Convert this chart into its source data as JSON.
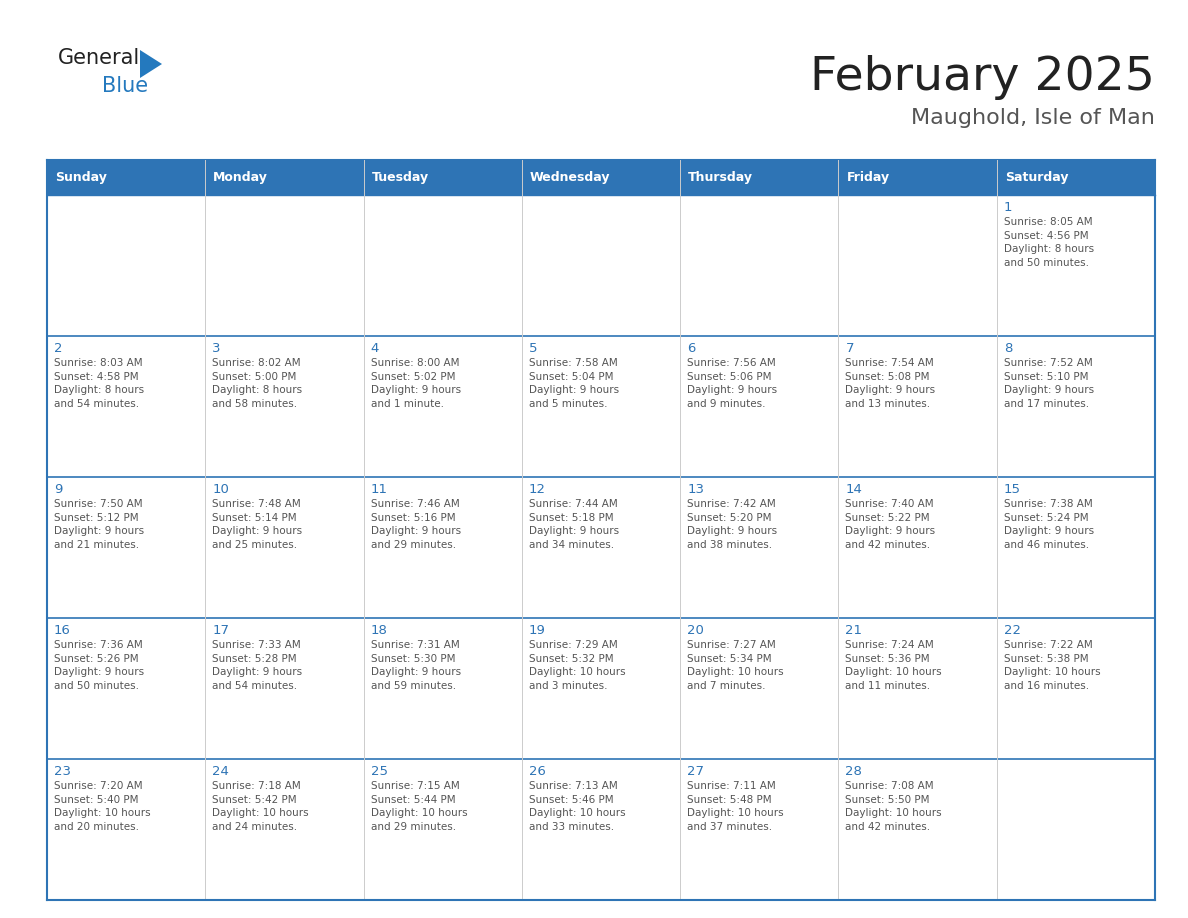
{
  "title": "February 2025",
  "subtitle": "Maughold, Isle of Man",
  "header_bg": "#2E74B5",
  "header_text_color": "#FFFFFF",
  "cell_bg": "#FFFFFF",
  "cell_alt_bg": "#F2F2F2",
  "row_border_color": "#2E74B5",
  "col_border_color": "#CCCCCC",
  "outer_border_color": "#2E74B5",
  "title_color": "#222222",
  "subtitle_color": "#555555",
  "day_number_color": "#2E74B5",
  "cell_text_color": "#555555",
  "days_of_week": [
    "Sunday",
    "Monday",
    "Tuesday",
    "Wednesday",
    "Thursday",
    "Friday",
    "Saturday"
  ],
  "weeks": [
    [
      {
        "day": null,
        "info": null
      },
      {
        "day": null,
        "info": null
      },
      {
        "day": null,
        "info": null
      },
      {
        "day": null,
        "info": null
      },
      {
        "day": null,
        "info": null
      },
      {
        "day": null,
        "info": null
      },
      {
        "day": 1,
        "info": "Sunrise: 8:05 AM\nSunset: 4:56 PM\nDaylight: 8 hours\nand 50 minutes."
      }
    ],
    [
      {
        "day": 2,
        "info": "Sunrise: 8:03 AM\nSunset: 4:58 PM\nDaylight: 8 hours\nand 54 minutes."
      },
      {
        "day": 3,
        "info": "Sunrise: 8:02 AM\nSunset: 5:00 PM\nDaylight: 8 hours\nand 58 minutes."
      },
      {
        "day": 4,
        "info": "Sunrise: 8:00 AM\nSunset: 5:02 PM\nDaylight: 9 hours\nand 1 minute."
      },
      {
        "day": 5,
        "info": "Sunrise: 7:58 AM\nSunset: 5:04 PM\nDaylight: 9 hours\nand 5 minutes."
      },
      {
        "day": 6,
        "info": "Sunrise: 7:56 AM\nSunset: 5:06 PM\nDaylight: 9 hours\nand 9 minutes."
      },
      {
        "day": 7,
        "info": "Sunrise: 7:54 AM\nSunset: 5:08 PM\nDaylight: 9 hours\nand 13 minutes."
      },
      {
        "day": 8,
        "info": "Sunrise: 7:52 AM\nSunset: 5:10 PM\nDaylight: 9 hours\nand 17 minutes."
      }
    ],
    [
      {
        "day": 9,
        "info": "Sunrise: 7:50 AM\nSunset: 5:12 PM\nDaylight: 9 hours\nand 21 minutes."
      },
      {
        "day": 10,
        "info": "Sunrise: 7:48 AM\nSunset: 5:14 PM\nDaylight: 9 hours\nand 25 minutes."
      },
      {
        "day": 11,
        "info": "Sunrise: 7:46 AM\nSunset: 5:16 PM\nDaylight: 9 hours\nand 29 minutes."
      },
      {
        "day": 12,
        "info": "Sunrise: 7:44 AM\nSunset: 5:18 PM\nDaylight: 9 hours\nand 34 minutes."
      },
      {
        "day": 13,
        "info": "Sunrise: 7:42 AM\nSunset: 5:20 PM\nDaylight: 9 hours\nand 38 minutes."
      },
      {
        "day": 14,
        "info": "Sunrise: 7:40 AM\nSunset: 5:22 PM\nDaylight: 9 hours\nand 42 minutes."
      },
      {
        "day": 15,
        "info": "Sunrise: 7:38 AM\nSunset: 5:24 PM\nDaylight: 9 hours\nand 46 minutes."
      }
    ],
    [
      {
        "day": 16,
        "info": "Sunrise: 7:36 AM\nSunset: 5:26 PM\nDaylight: 9 hours\nand 50 minutes."
      },
      {
        "day": 17,
        "info": "Sunrise: 7:33 AM\nSunset: 5:28 PM\nDaylight: 9 hours\nand 54 minutes."
      },
      {
        "day": 18,
        "info": "Sunrise: 7:31 AM\nSunset: 5:30 PM\nDaylight: 9 hours\nand 59 minutes."
      },
      {
        "day": 19,
        "info": "Sunrise: 7:29 AM\nSunset: 5:32 PM\nDaylight: 10 hours\nand 3 minutes."
      },
      {
        "day": 20,
        "info": "Sunrise: 7:27 AM\nSunset: 5:34 PM\nDaylight: 10 hours\nand 7 minutes."
      },
      {
        "day": 21,
        "info": "Sunrise: 7:24 AM\nSunset: 5:36 PM\nDaylight: 10 hours\nand 11 minutes."
      },
      {
        "day": 22,
        "info": "Sunrise: 7:22 AM\nSunset: 5:38 PM\nDaylight: 10 hours\nand 16 minutes."
      }
    ],
    [
      {
        "day": 23,
        "info": "Sunrise: 7:20 AM\nSunset: 5:40 PM\nDaylight: 10 hours\nand 20 minutes."
      },
      {
        "day": 24,
        "info": "Sunrise: 7:18 AM\nSunset: 5:42 PM\nDaylight: 10 hours\nand 24 minutes."
      },
      {
        "day": 25,
        "info": "Sunrise: 7:15 AM\nSunset: 5:44 PM\nDaylight: 10 hours\nand 29 minutes."
      },
      {
        "day": 26,
        "info": "Sunrise: 7:13 AM\nSunset: 5:46 PM\nDaylight: 10 hours\nand 33 minutes."
      },
      {
        "day": 27,
        "info": "Sunrise: 7:11 AM\nSunset: 5:48 PM\nDaylight: 10 hours\nand 37 minutes."
      },
      {
        "day": 28,
        "info": "Sunrise: 7:08 AM\nSunset: 5:50 PM\nDaylight: 10 hours\nand 42 minutes."
      },
      {
        "day": null,
        "info": null
      }
    ]
  ],
  "logo_text_general": "General",
  "logo_text_blue": "Blue",
  "logo_color_general": "#222222",
  "logo_color_blue": "#2479BE"
}
